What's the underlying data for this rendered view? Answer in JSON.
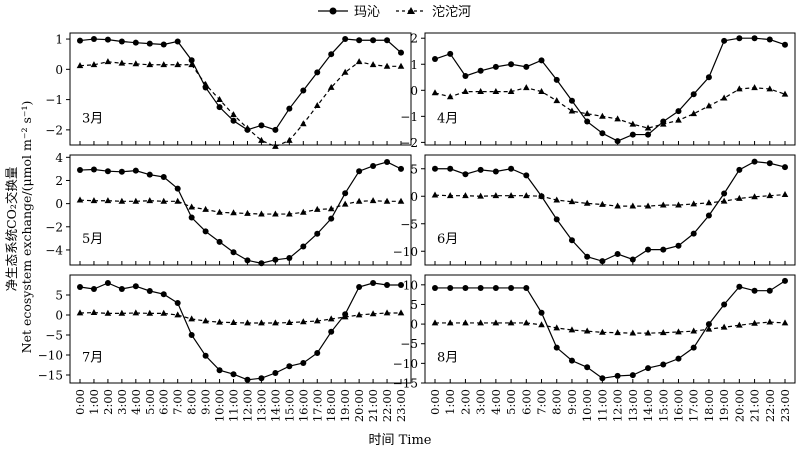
{
  "chart_data": {
    "legend": {
      "entries": [
        {
          "label": "玛沁",
          "style": "solid-circle"
        },
        {
          "label": "沱沱河",
          "style": "dashed-triangle"
        }
      ],
      "placement": "top-center"
    },
    "ylabel": "净生态系统CO₂交换量",
    "ylabel_en": "Net ecosystem exchange/(μmol m⁻² s⁻¹)",
    "xlabel": "时间 Time",
    "x": [
      "0:00",
      "1:00",
      "2:00",
      "3:00",
      "4:00",
      "5:00",
      "6:00",
      "7:00",
      "8:00",
      "9:00",
      "10:00",
      "11:00",
      "12:00",
      "13:00",
      "14:00",
      "15:00",
      "16:00",
      "17:00",
      "18:00",
      "19:00",
      "20:00",
      "21:00",
      "22:00",
      "23:00"
    ],
    "panels": [
      {
        "label": "3月",
        "type": "line",
        "ylim": [
          -2.5,
          1.2
        ],
        "yticks": [
          1,
          0,
          -1,
          -2
        ],
        "series": [
          {
            "name": "玛沁",
            "values": [
              0.95,
              1.0,
              0.98,
              0.92,
              0.88,
              0.85,
              0.82,
              0.92,
              0.3,
              -0.6,
              -1.25,
              -1.7,
              -2.0,
              -1.85,
              -2.0,
              -1.3,
              -0.7,
              -0.1,
              0.5,
              1.0,
              0.96,
              0.96,
              0.96,
              0.55
            ]
          },
          {
            "name": "沱沱河",
            "values": [
              0.12,
              0.15,
              0.25,
              0.2,
              0.18,
              0.15,
              0.15,
              0.15,
              0.15,
              -0.5,
              -1.0,
              -1.5,
              -1.95,
              -2.35,
              -2.55,
              -2.35,
              -1.8,
              -1.2,
              -0.6,
              -0.1,
              0.25,
              0.15,
              0.1,
              0.1
            ]
          }
        ]
      },
      {
        "label": "4月",
        "type": "line",
        "ylim": [
          -2.1,
          2.2
        ],
        "yticks": [
          2,
          1,
          0,
          -1,
          -2
        ],
        "series": [
          {
            "name": "玛沁",
            "values": [
              1.2,
              1.4,
              0.55,
              0.75,
              0.9,
              1.0,
              0.9,
              1.15,
              0.4,
              -0.4,
              -1.2,
              -1.65,
              -1.95,
              -1.7,
              -1.7,
              -1.2,
              -0.8,
              -0.15,
              0.5,
              1.9,
              2.0,
              2.0,
              1.95,
              1.75
            ]
          },
          {
            "name": "沱沱河",
            "values": [
              -0.1,
              -0.25,
              -0.05,
              -0.05,
              -0.05,
              -0.05,
              0.1,
              -0.05,
              -0.4,
              -0.8,
              -0.9,
              -1.0,
              -1.1,
              -1.3,
              -1.45,
              -1.3,
              -1.15,
              -0.9,
              -0.6,
              -0.3,
              0.05,
              0.1,
              0.05,
              -0.15
            ]
          }
        ]
      },
      {
        "label": "5月",
        "type": "line",
        "ylim": [
          -5.3,
          4.2
        ],
        "yticks": [
          4,
          2,
          0,
          -2,
          -4
        ],
        "series": [
          {
            "name": "玛沁",
            "values": [
              2.9,
              2.95,
              2.8,
              2.75,
              2.85,
              2.5,
              2.3,
              1.3,
              -1.2,
              -2.4,
              -3.3,
              -4.2,
              -4.9,
              -5.15,
              -4.85,
              -4.7,
              -3.7,
              -2.6,
              -1.3,
              0.9,
              2.8,
              3.25,
              3.6,
              3.0
            ]
          },
          {
            "name": "沱沱河",
            "values": [
              0.3,
              0.25,
              0.25,
              0.2,
              0.2,
              0.25,
              0.2,
              0.2,
              -0.3,
              -0.5,
              -0.75,
              -0.8,
              -0.85,
              -0.9,
              -0.9,
              -0.9,
              -0.75,
              -0.5,
              -0.45,
              -0.05,
              0.2,
              0.25,
              0.2,
              0.2
            ]
          }
        ]
      },
      {
        "label": "6月",
        "type": "line",
        "ylim": [
          -12.5,
          7.5
        ],
        "yticks": [
          5,
          0,
          -5,
          -10
        ],
        "series": [
          {
            "name": "玛沁",
            "values": [
              5.0,
              5.0,
              4.0,
              4.8,
              4.5,
              5.0,
              3.8,
              0.0,
              -4.2,
              -8.0,
              -11.0,
              -11.8,
              -10.5,
              -11.5,
              -9.7,
              -9.7,
              -9.0,
              -6.8,
              -3.5,
              0.5,
              4.8,
              6.3,
              6.0,
              5.3
            ]
          },
          {
            "name": "沱沱河",
            "values": [
              0.2,
              0.1,
              0.1,
              0.0,
              0.1,
              0.1,
              0.1,
              0.0,
              -0.7,
              -1.0,
              -1.3,
              -1.5,
              -1.8,
              -1.8,
              -1.8,
              -1.6,
              -1.6,
              -1.4,
              -1.2,
              -0.9,
              -0.4,
              -0.1,
              0.1,
              0.3
            ]
          }
        ]
      },
      {
        "label": "7月",
        "type": "line",
        "ylim": [
          -17,
          10
        ],
        "yticks": [
          5,
          0,
          -5,
          -10,
          -15
        ],
        "series": [
          {
            "name": "玛沁",
            "values": [
              7.0,
              6.5,
              8.0,
              6.5,
              7.2,
              6.0,
              5.2,
              3.0,
              -5.0,
              -10.2,
              -13.8,
              -14.8,
              -16.2,
              -15.8,
              -14.5,
              -12.8,
              -12.0,
              -9.5,
              -4.2,
              0.2,
              7.0,
              8.0,
              7.5,
              7.5
            ]
          },
          {
            "name": "沱沱河",
            "values": [
              0.5,
              0.6,
              0.4,
              0.4,
              0.5,
              0.4,
              0.4,
              0.0,
              -1.0,
              -1.5,
              -1.8,
              -1.9,
              -2.0,
              -2.0,
              -2.0,
              -1.9,
              -1.7,
              -1.5,
              -1.0,
              -0.5,
              0.0,
              0.3,
              0.5,
              0.5
            ]
          }
        ]
      },
      {
        "label": "8月",
        "type": "line",
        "ylim": [
          -15,
          12.5
        ],
        "yticks": [
          10,
          5,
          0,
          -5,
          -10,
          -15
        ],
        "series": [
          {
            "name": "玛沁",
            "values": [
              9.2,
              9.2,
              9.2,
              9.2,
              9.2,
              9.2,
              9.2,
              2.9,
              -6.0,
              -9.3,
              -11.0,
              -13.8,
              -13.2,
              -13.0,
              -11.2,
              -10.3,
              -8.8,
              -6.0,
              0.0,
              5.0,
              9.5,
              8.5,
              8.5,
              11.0
            ]
          },
          {
            "name": "沱沱河",
            "values": [
              0.3,
              0.3,
              0.3,
              0.3,
              0.3,
              0.3,
              0.3,
              -0.2,
              -1.0,
              -1.5,
              -1.8,
              -2.1,
              -2.2,
              -2.3,
              -2.3,
              -2.2,
              -2.0,
              -1.8,
              -1.3,
              -0.8,
              -0.3,
              0.2,
              0.5,
              0.3
            ]
          }
        ]
      }
    ]
  }
}
